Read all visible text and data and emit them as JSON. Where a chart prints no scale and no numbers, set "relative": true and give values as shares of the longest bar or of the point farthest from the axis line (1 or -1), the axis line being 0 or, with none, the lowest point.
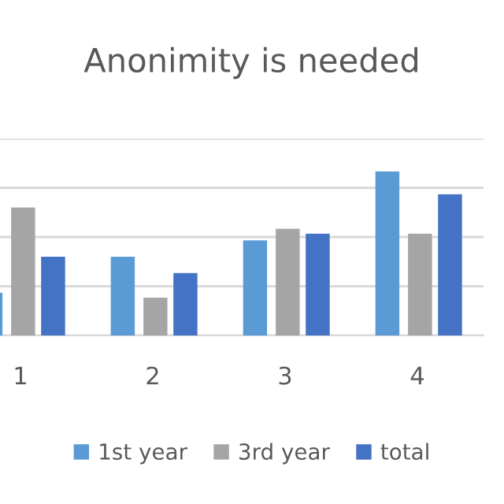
{
  "chart_data": {
    "type": "bar",
    "title": "Anonimity is needed",
    "relative": true,
    "categories": [
      "1",
      "2",
      "3",
      "4"
    ],
    "series": [
      {
        "name": "1st year",
        "color": "#5b9bd5",
        "values": [
          0.26,
          0.48,
          0.58,
          1
        ]
      },
      {
        "name": "3rd year",
        "color": "#a5a5a5",
        "values": [
          0.78,
          0.23,
          0.65,
          0.62
        ]
      },
      {
        "name": "total",
        "color": "#4472c4",
        "values": [
          0.48,
          0.38,
          0.62,
          0.86
        ]
      }
    ],
    "grid": "y",
    "legend": "bottom"
  }
}
